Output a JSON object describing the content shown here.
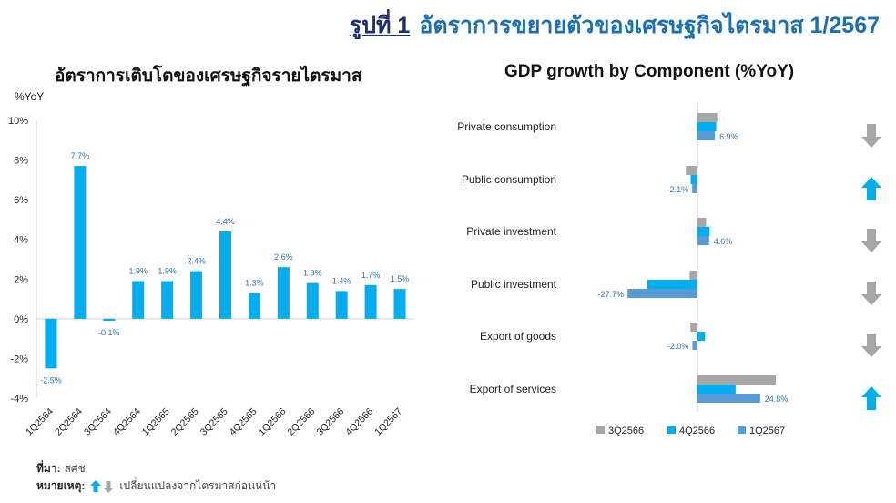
{
  "header": {
    "figure_no": "รูปที่ 1",
    "title": "อัตราการขยายตัวของเศรษฐกิจไตรมาส 1/2567"
  },
  "colors": {
    "bar_blue": "#00aeef",
    "series_3q": "#a6a6a6",
    "series_4q": "#00aeef",
    "series_1q": "#5b9bd5",
    "arrow_up": "#00aeef",
    "arrow_down": "#a6a6a6",
    "label_blue": "#2e75b6"
  },
  "footer": {
    "source_label": "ที่มา:",
    "source_value": "สศช.",
    "note_label": "หมายเหตุ:",
    "note_value": "เปลี่ยนแปลงจากไตรมาสก่อนหน้า"
  },
  "chart_data": [
    {
      "type": "bar",
      "title": "อัตราการเติบโตของเศรษฐกิจรายไตรมาส",
      "ylabel": "%YoY",
      "xlabel": "",
      "ylim": [
        -4,
        10
      ],
      "yticks": [
        -4,
        -2,
        0,
        2,
        4,
        6,
        8,
        10
      ],
      "ytick_labels": [
        "-4%",
        "-2%",
        "0%",
        "2%",
        "4%",
        "6%",
        "8%",
        "10%"
      ],
      "categories": [
        "1Q2564",
        "2Q2564",
        "3Q2564",
        "4Q2564",
        "1Q2565",
        "2Q2565",
        "3Q2565",
        "4Q2565",
        "1Q2566",
        "2Q2566",
        "3Q2566",
        "4Q2566",
        "1Q2567"
      ],
      "values": [
        -2.5,
        7.7,
        -0.1,
        1.9,
        1.9,
        2.4,
        4.4,
        1.3,
        2.6,
        1.8,
        1.4,
        1.7,
        1.5
      ],
      "data_labels": [
        "-2.5%",
        "7.7%",
        "-0.1%",
        "1.9%",
        "1.9%",
        "2.4%",
        "4.4%",
        "1.3%",
        "2.6%",
        "1.8%",
        "1.4%",
        "1.7%",
        "1.5%"
      ],
      "grid": false
    },
    {
      "type": "bar",
      "orientation": "horizontal",
      "title": "GDP growth by Component  (%YoY)",
      "categories": [
        "Private consumption",
        "Public consumption",
        "Private investment",
        "Public investment",
        "Export of goods",
        "Export of services"
      ],
      "series": [
        {
          "name": "3Q2566",
          "values": [
            7.8,
            -4.6,
            3.4,
            -3.1,
            -2.8,
            31.0
          ]
        },
        {
          "name": "4Q2566",
          "values": [
            7.4,
            -2.7,
            4.8,
            -20.0,
            3.0,
            15.1
          ]
        },
        {
          "name": "1Q2567",
          "values": [
            6.9,
            -2.1,
            4.6,
            -27.7,
            -2.0,
            24.8
          ]
        }
      ],
      "data_labels": [
        "6.9%",
        "-2.1%",
        "4.6%",
        "-27.7%",
        "-2.0%",
        "24.8%"
      ],
      "change_vs_prev_quarter": [
        "down",
        "up",
        "down",
        "down",
        "down",
        "up"
      ],
      "legend_position": "bottom",
      "grid": false
    }
  ]
}
